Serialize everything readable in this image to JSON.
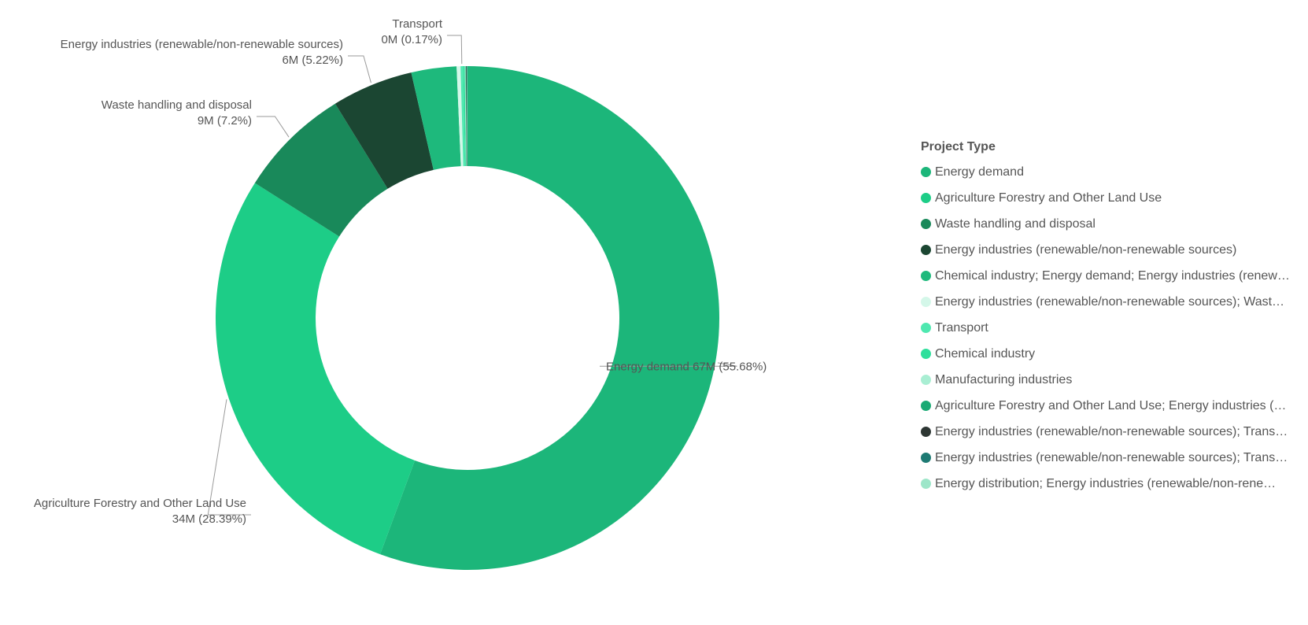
{
  "chart_data": {
    "type": "pie",
    "style": "donut",
    "legend_title": "Project Type",
    "legend_position": "right",
    "slices": [
      {
        "name": "Energy demand",
        "value": 67,
        "percent": 55.68,
        "color": "#1cb67a",
        "label": "Energy demand 67M (55.68%)"
      },
      {
        "name": "Agriculture Forestry and Other Land Use",
        "value": 34,
        "percent": 28.39,
        "color": "#1dcd87",
        "label_line1": "Agriculture Forestry and Other Land Use",
        "label_line2": "34M (28.39%)"
      },
      {
        "name": "Waste handling and disposal",
        "value": 9,
        "percent": 7.2,
        "color": "#19895a",
        "label_line1": "Waste handling and disposal",
        "label_line2": "9M (7.2%)"
      },
      {
        "name": "Energy industries (renewable/non-renewable sources)",
        "value": 6,
        "percent": 5.22,
        "color": "#1b4632",
        "label_line1": "Energy industries (renewable/non-renewable sources)",
        "label_line2": "6M (5.22%)"
      },
      {
        "name": "Chemical industry; Energy demand; Energy industries (renew…",
        "percent": 2.9,
        "color": "#1eb97c"
      },
      {
        "name": "Energy industries (renewable/non-renewable sources); Wast…",
        "percent": 0.25,
        "color": "#d4f7e9"
      },
      {
        "name": "Transport",
        "value": 0,
        "percent": 0.17,
        "color": "#4fe8b0",
        "label_line1": "Transport",
        "label_line2": "0M (0.17%)"
      },
      {
        "name": "Chemical industry",
        "percent": 0.1,
        "color": "#2fdf9c"
      },
      {
        "name": "Manufacturing industries",
        "percent": 0.05,
        "color": "#a9eed3"
      },
      {
        "name": "Agriculture Forestry and Other Land Use; Energy industries (…",
        "percent": 0.04,
        "color": "#1aaa74"
      },
      {
        "name": "Energy industries (renewable/non-renewable sources); Trans…",
        "percent": 0.03,
        "color": "#2d3633"
      },
      {
        "name": "Energy industries (renewable/non-renewable sources); Trans…",
        "percent": 0.03,
        "color": "#1e7a73"
      },
      {
        "name": "Energy distribution; Energy industries (renewable/non-rene…",
        "percent": 0.02,
        "color": "#9de6c9"
      }
    ]
  }
}
